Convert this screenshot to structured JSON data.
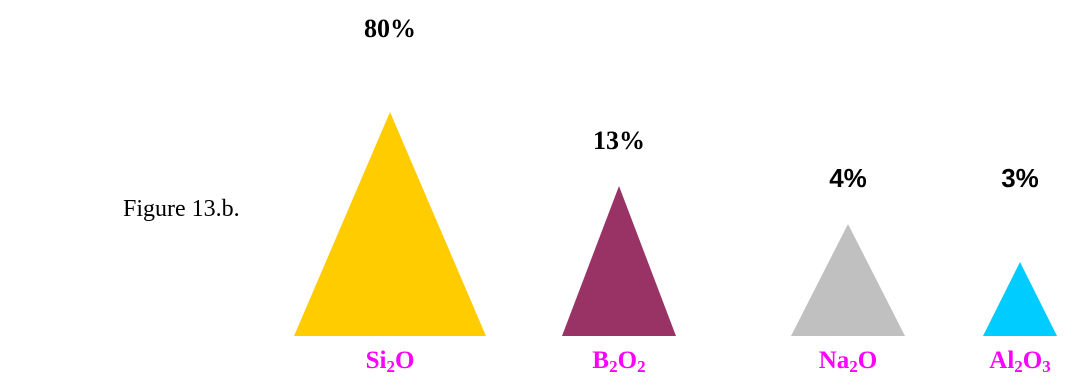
{
  "figure_label": "Figure 13.b.",
  "chart_data": {
    "type": "bar",
    "categories": [
      {
        "base": "Si",
        "sub1": "2",
        "mid": "O",
        "sub2": ""
      },
      {
        "base": "B",
        "sub1": "2",
        "mid": "O",
        "sub2": "2"
      },
      {
        "base": "Na",
        "sub1": "2",
        "mid": "O",
        "sub2": ""
      },
      {
        "base": "Al",
        "sub1": "2",
        "mid": "O",
        "sub2": "3"
      }
    ],
    "values": [
      80,
      13,
      4,
      3
    ],
    "value_labels": [
      "80%",
      "13%",
      "4%",
      "3%"
    ],
    "colors": [
      "#FFCC00",
      "#993366",
      "#C0C0C0",
      "#00CCFF"
    ],
    "label_color": "#FF00FF",
    "marker": "triangle",
    "grid": false,
    "legend": "none"
  }
}
